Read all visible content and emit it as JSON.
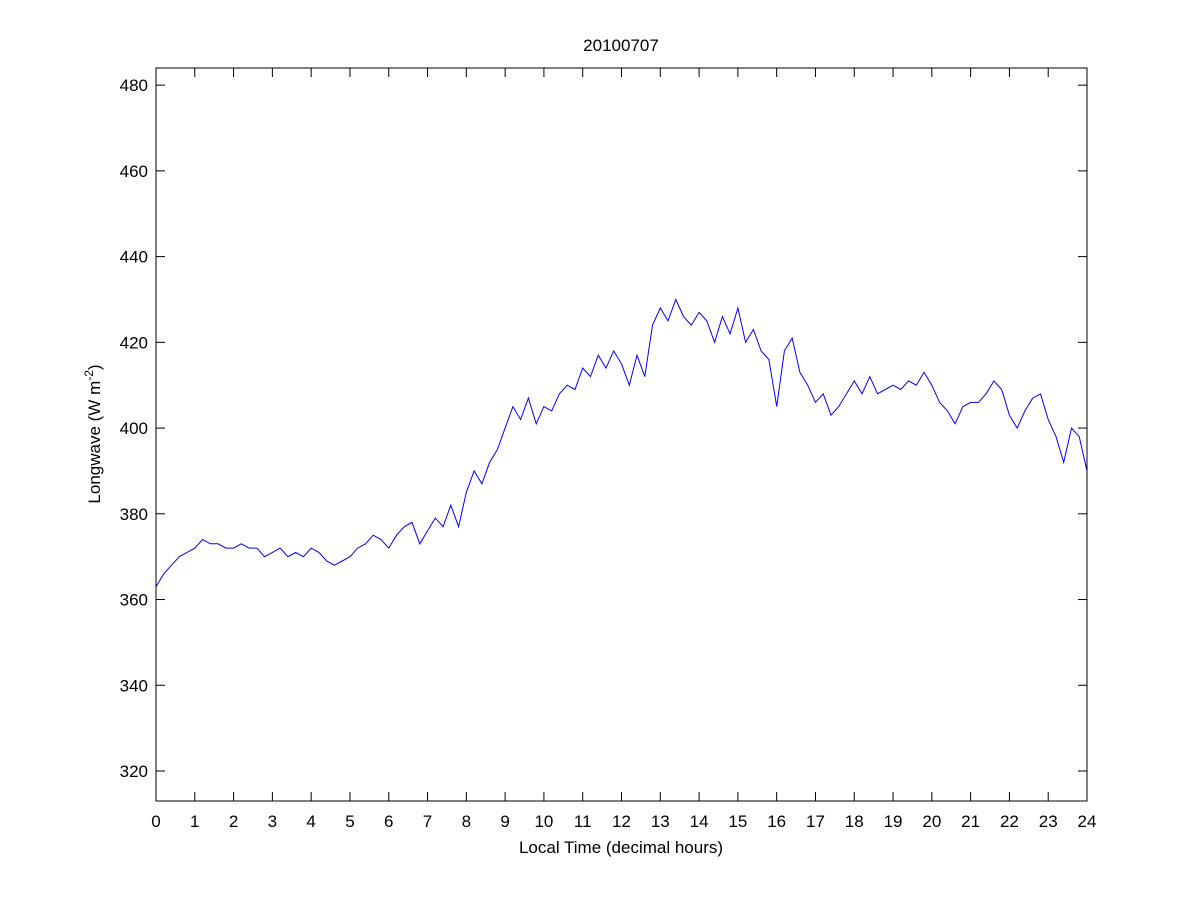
{
  "chart_data": {
    "type": "line",
    "title": "20100707",
    "xlabel": "Local Time (decimal hours)",
    "ylabel": {
      "main": "Longwave (W m",
      "superscript": "-2",
      "close": ")"
    },
    "xlim": [
      0,
      24
    ],
    "ylim": [
      313,
      484
    ],
    "xticks": [
      0,
      1,
      2,
      3,
      4,
      5,
      6,
      7,
      8,
      9,
      10,
      11,
      12,
      13,
      14,
      15,
      16,
      17,
      18,
      19,
      20,
      21,
      22,
      23,
      24
    ],
    "yticks": [
      320,
      340,
      360,
      380,
      400,
      420,
      440,
      460,
      480
    ],
    "grid": false,
    "line_color": "#0000ff",
    "x": [
      0,
      0.2,
      0.4,
      0.6,
      0.8,
      1,
      1.2,
      1.4,
      1.6,
      1.8,
      2,
      2.2,
      2.4,
      2.6,
      2.8,
      3,
      3.2,
      3.4,
      3.6,
      3.8,
      4,
      4.2,
      4.4,
      4.6,
      4.8,
      5,
      5.2,
      5.4,
      5.6,
      5.8,
      6,
      6.2,
      6.4,
      6.6,
      6.8,
      7,
      7.2,
      7.4,
      7.6,
      7.8,
      8,
      8.2,
      8.4,
      8.6,
      8.8,
      9,
      9.2,
      9.4,
      9.6,
      9.8,
      10,
      10.2,
      10.4,
      10.6,
      10.8,
      11,
      11.2,
      11.4,
      11.6,
      11.8,
      12,
      12.2,
      12.4,
      12.6,
      12.8,
      13,
      13.2,
      13.4,
      13.6,
      13.8,
      14,
      14.2,
      14.4,
      14.6,
      14.8,
      15,
      15.2,
      15.4,
      15.6,
      15.8,
      16,
      16.2,
      16.4,
      16.6,
      16.8,
      17,
      17.2,
      17.4,
      17.6,
      17.8,
      18,
      18.2,
      18.4,
      18.6,
      18.8,
      19,
      19.2,
      19.4,
      19.6,
      19.8,
      20,
      20.2,
      20.4,
      20.6,
      20.8,
      21,
      21.2,
      21.4,
      21.6,
      21.8,
      22,
      22.2,
      22.4,
      22.6,
      22.8,
      23,
      23.2,
      23.4,
      23.6,
      23.8,
      24
    ],
    "y": [
      363,
      366,
      368,
      370,
      371,
      372,
      374,
      373,
      373,
      372,
      372,
      373,
      372,
      372,
      370,
      371,
      372,
      370,
      371,
      370,
      372,
      371,
      369,
      368,
      369,
      370,
      372,
      373,
      375,
      374,
      372,
      375,
      377,
      378,
      373,
      376,
      379,
      377,
      382,
      377,
      385,
      390,
      387,
      392,
      395,
      400,
      405,
      402,
      407,
      401,
      405,
      404,
      408,
      410,
      409,
      414,
      412,
      417,
      414,
      418,
      415,
      410,
      417,
      412,
      424,
      428,
      425,
      430,
      426,
      424,
      427,
      425,
      420,
      426,
      422,
      428,
      420,
      423,
      418,
      416,
      405,
      418,
      421,
      413,
      410,
      406,
      408,
      403,
      405,
      408,
      411,
      408,
      412,
      408,
      409,
      410,
      409,
      411,
      410,
      413,
      410,
      406,
      404,
      401,
      405,
      406,
      406,
      408,
      411,
      409,
      403,
      400,
      404,
      407,
      408,
      402,
      398,
      392,
      400,
      398,
      390
    ]
  }
}
